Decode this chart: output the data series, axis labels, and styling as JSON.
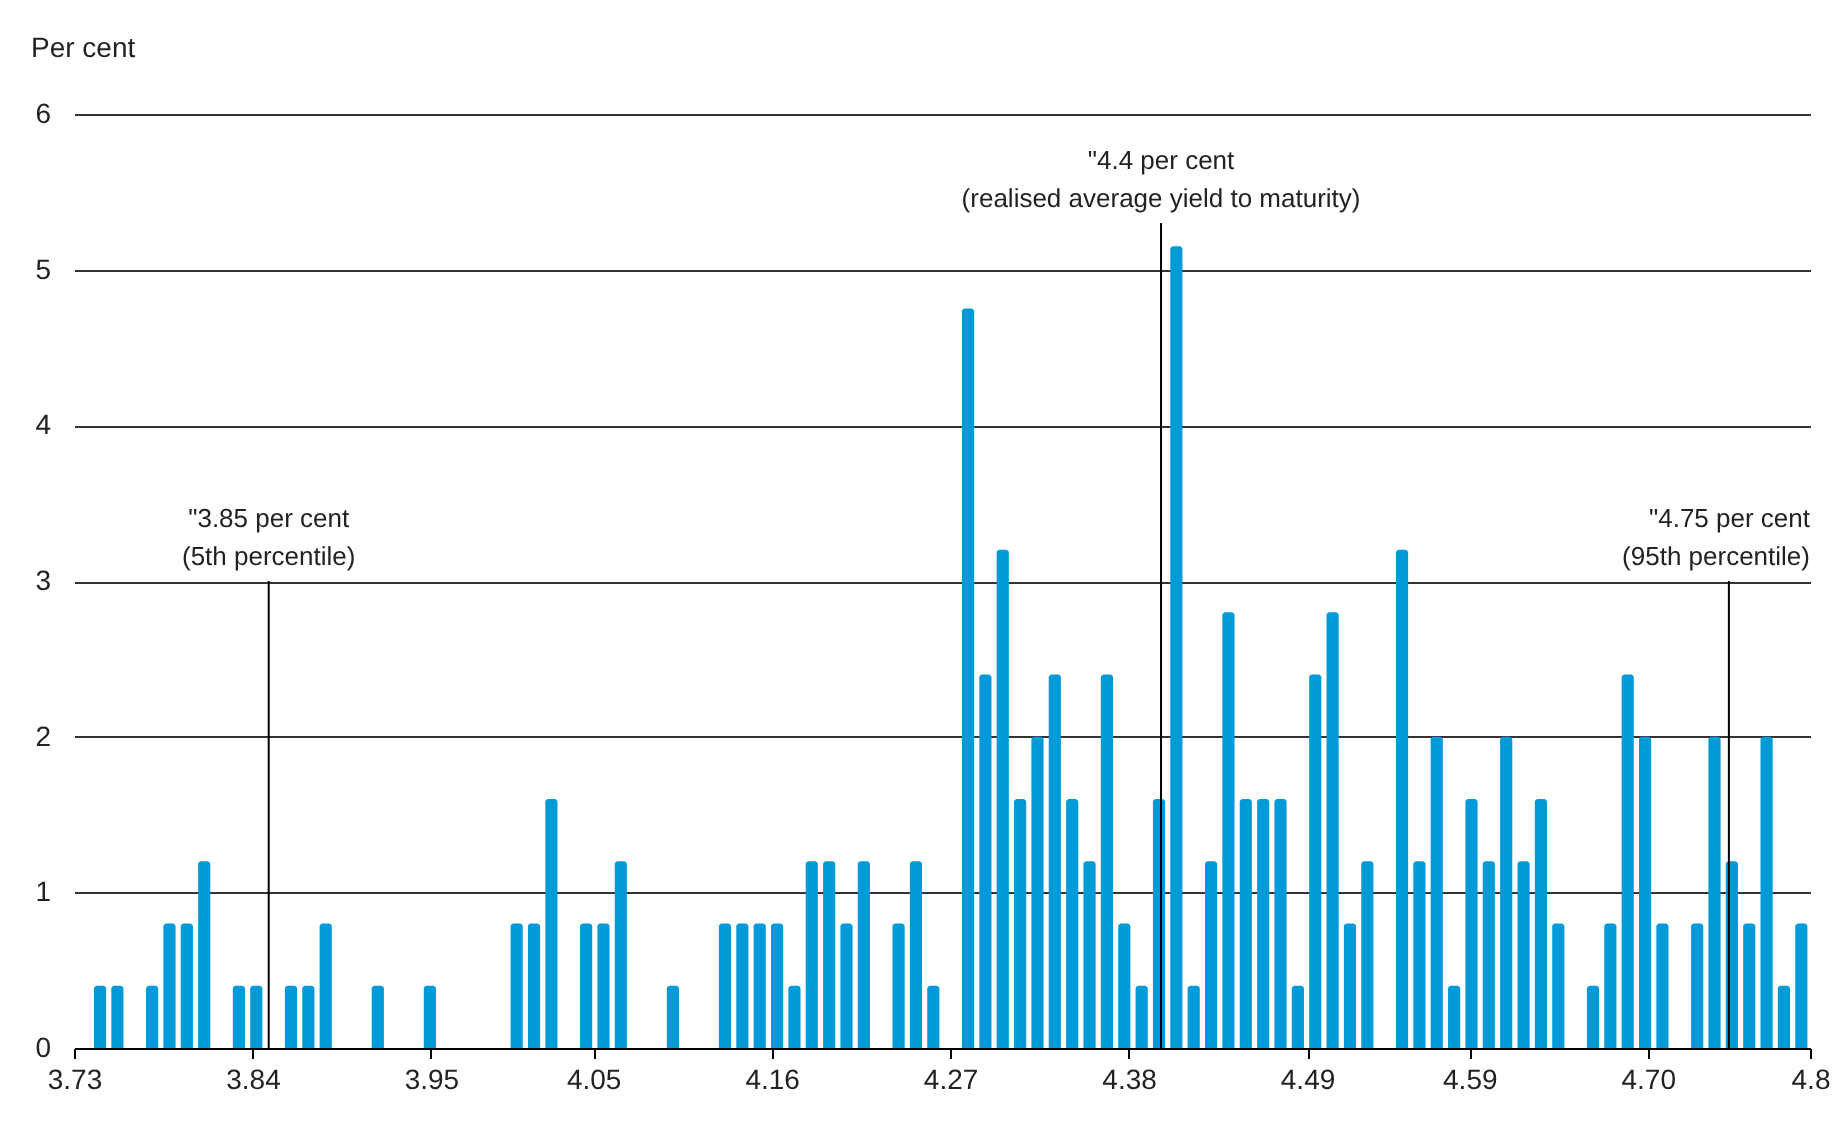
{
  "chart_data": {
    "type": "histogram",
    "ylabel": "Per cent",
    "bins": [
      3.73,
      3.7407,
      3.7514,
      3.7621,
      3.7728,
      3.7835,
      3.7942,
      3.8049,
      3.8156,
      3.8263,
      3.837,
      3.8477,
      3.8584,
      3.8691,
      3.8798,
      3.8905,
      3.9012,
      3.9119,
      3.9226,
      3.9333,
      3.944,
      3.9547,
      3.9654,
      3.9761,
      3.9868,
      3.9975,
      4.0082,
      4.0189,
      4.0296,
      4.0403,
      4.051,
      4.0617,
      4.0724,
      4.0831,
      4.0938,
      4.1045,
      4.1152,
      4.1259,
      4.1366,
      4.1473,
      4.158,
      4.1687,
      4.1794,
      4.1901,
      4.2008,
      4.2115,
      4.2222,
      4.2329,
      4.2436,
      4.2543,
      4.265,
      4.2757,
      4.2864,
      4.2971,
      4.3078,
      4.3185,
      4.3292,
      4.3399,
      4.3506,
      4.3613,
      4.372,
      4.3827,
      4.3934,
      4.4041,
      4.4148,
      4.4255,
      4.4362,
      4.4469,
      4.4576,
      4.4683,
      4.479,
      4.4897,
      4.5004,
      4.5111,
      4.5218,
      4.5325,
      4.5432,
      4.5539,
      4.5646,
      4.5753,
      4.586,
      4.5967,
      4.6074,
      4.6181,
      4.6288,
      4.6395,
      4.6502,
      4.6609,
      4.6716,
      4.6823,
      4.693,
      4.7037,
      4.7144,
      4.7251,
      4.7358,
      4.7465,
      4.7572,
      4.7679,
      4.7786,
      4.7893,
      4.8
    ],
    "values": [
      0,
      0.4,
      0.4,
      0,
      0.4,
      0.8,
      0.8,
      1.2,
      0,
      0.4,
      0.4,
      0,
      0.4,
      0.4,
      0.8,
      0,
      0,
      0.4,
      0,
      0,
      0.4,
      0,
      0,
      0,
      0,
      0.8,
      0.8,
      1.6,
      0,
      0.8,
      0.8,
      1.2,
      0,
      0,
      0.4,
      0,
      0,
      0.8,
      0.8,
      0.8,
      0.8,
      0.4,
      1.2,
      1.2,
      0.8,
      1.2,
      0,
      0.8,
      1.2,
      0.4,
      0,
      4.75,
      2.4,
      3.2,
      1.6,
      2.0,
      2.4,
      1.6,
      1.2,
      2.4,
      0.8,
      0.4,
      1.6,
      5.15,
      0.4,
      1.2,
      2.8,
      1.6,
      1.6,
      1.6,
      0.4,
      2.4,
      2.8,
      0.8,
      1.2,
      0,
      3.2,
      1.2,
      2.0,
      0.4,
      1.6,
      1.2,
      2.0,
      1.2,
      1.6,
      0.8,
      0,
      0.4,
      0.8,
      2.4,
      2.0,
      0.8,
      0,
      0.8,
      2.0,
      1.2,
      0.8,
      2.0,
      0.4,
      0.8
    ],
    "color": "#009ad9",
    "xlim": [
      3.73,
      4.8
    ],
    "xticks": [
      3.73,
      3.84,
      3.95,
      4.05,
      4.16,
      4.27,
      4.38,
      4.49,
      4.59,
      {
        "value": 4.7,
        "label": "4.70"
      },
      4.8
    ],
    "ylim": [
      0,
      6
    ],
    "yticks": [
      0,
      1,
      2,
      3,
      4,
      5,
      6
    ],
    "grid": "y",
    "ref_lines": [
      {
        "axis": "x",
        "value": 3.85,
        "label": "\"3.85 per cent\n(5th percentile)"
      },
      {
        "axis": "x",
        "value": 4.4,
        "label": "\"4.4 per cent\n(realised average yield to maturity)"
      },
      {
        "axis": "x",
        "value": 4.75,
        "label": "\"4.75 per cent\n(95th percentile)"
      }
    ]
  }
}
